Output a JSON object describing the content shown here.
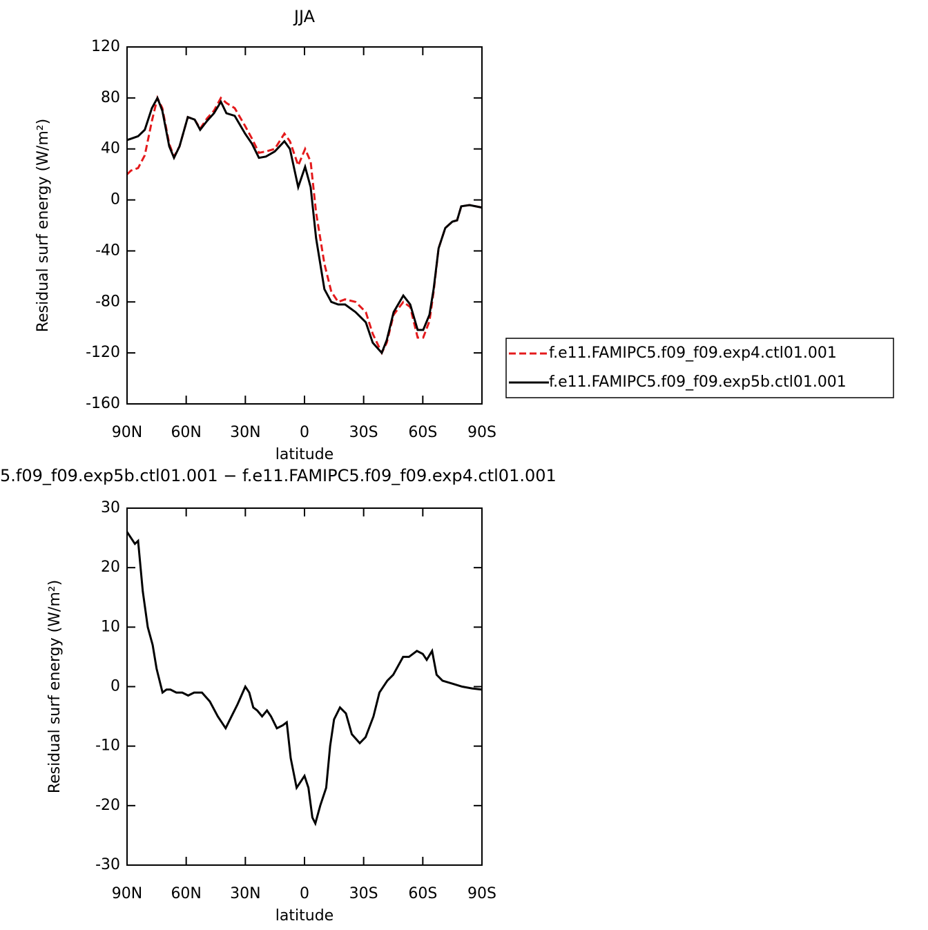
{
  "chart_data": [
    {
      "type": "line",
      "title": "JJA",
      "ylabel": "Residual surf energy (W/m²)",
      "xlabel": "latitude",
      "x": [
        90,
        88,
        84.4,
        81,
        77.4,
        74.6,
        72.1,
        68.6,
        66.2,
        63.4,
        59.2,
        55.7,
        52.9,
        49.4,
        45.9,
        42.4,
        39.6,
        35.4,
        30.1,
        26.6,
        23.1,
        19.6,
        15.1,
        10.2,
        7.4,
        3.2,
        -0.3,
        -3.1,
        -5.9,
        -10.1,
        -13.6,
        -17.1,
        -20.6,
        -25.9,
        -31.1,
        -34.6,
        -39.2,
        -41.7,
        -45.2,
        -50.1,
        -53.6,
        -57.4,
        -60.2,
        -63.4,
        -65.5,
        -68,
        -71.4,
        -75,
        -77.4,
        -79.5,
        -83.7,
        -90
      ],
      "xlim": [
        90,
        -90
      ],
      "xticks": [
        {
          "value": 90,
          "label": "90N"
        },
        {
          "value": 60,
          "label": "60N"
        },
        {
          "value": 30,
          "label": "30N"
        },
        0,
        {
          "value": -30,
          "label": "30S"
        },
        {
          "value": -60,
          "label": "60S"
        },
        {
          "value": -90,
          "label": "90S"
        }
      ],
      "ylim": [
        -160,
        120
      ],
      "yticks": [
        -160,
        -120,
        -80,
        -40,
        0,
        40,
        80,
        120
      ],
      "legend": "right",
      "series": [
        {
          "name": "f.e11.FAMIPC5.f09_f09.exp4.ctl01.001",
          "color": "#e41a1c",
          "dash": true,
          "values": [
            20,
            23,
            25,
            35,
            62,
            80,
            72,
            44,
            34,
            42,
            65,
            63,
            56,
            64,
            70,
            80,
            76,
            72,
            58,
            48,
            37,
            38,
            40,
            52,
            46,
            27,
            40,
            30,
            -10,
            -50,
            -72,
            -80,
            -78,
            -80,
            -88,
            -105,
            -120,
            -112,
            -90,
            -80,
            -84,
            -108,
            -108,
            -95,
            -72,
            -38,
            -22,
            -17,
            -16,
            -5,
            -4,
            -6
          ]
        },
        {
          "name": "f.e11.FAMIPC5.f09_f09.exp5b.ctl01.001",
          "color": "#000000",
          "dash": false,
          "values": [
            47,
            48,
            50,
            55,
            72,
            80,
            70,
            42,
            33,
            42,
            65,
            63,
            55,
            62,
            68,
            77,
            68,
            66,
            52,
            44,
            33,
            34,
            38,
            46,
            40,
            10,
            26,
            10,
            -30,
            -70,
            -80,
            -82,
            -82,
            -88,
            -96,
            -112,
            -120,
            -110,
            -88,
            -75,
            -82,
            -102,
            -102,
            -90,
            -70,
            -38,
            -22,
            -17,
            -16,
            -5,
            -4,
            -6
          ]
        }
      ]
    },
    {
      "type": "line",
      "title": "5.f09_f09.exp5b.ctl01.001  −  f.e11.FAMIPC5.f09_f09.exp4.ctl01.001",
      "ylabel": "Residual surf energy (W/m²)",
      "xlabel": "latitude",
      "x": [
        90,
        88,
        86,
        84.4,
        82,
        79.5,
        77,
        75,
        72,
        70,
        68,
        65,
        62,
        59,
        56,
        52,
        48,
        44,
        40,
        37,
        34,
        30,
        28,
        26,
        24,
        21.5,
        19,
        17,
        14,
        11,
        9,
        7,
        4,
        2,
        0,
        -2,
        -4,
        -5.5,
        -8,
        -11,
        -13,
        -15,
        -18,
        -21,
        -24,
        -28,
        -31,
        -35,
        -38,
        -42,
        -45,
        -50,
        -53,
        -57,
        -60,
        -62,
        -64.7,
        -67,
        -70,
        -75,
        -80,
        -85,
        -90
      ],
      "xlim": [
        90,
        -90
      ],
      "xticks": [
        {
          "value": 90,
          "label": "90N"
        },
        {
          "value": 60,
          "label": "60N"
        },
        {
          "value": 30,
          "label": "30N"
        },
        0,
        {
          "value": -30,
          "label": "30S"
        },
        {
          "value": -60,
          "label": "60S"
        },
        {
          "value": -90,
          "label": "90S"
        }
      ],
      "ylim": [
        -30,
        30
      ],
      "yticks": [
        -30,
        -20,
        -10,
        0,
        10,
        20,
        30
      ],
      "color": "#000000",
      "values": [
        26,
        25,
        24,
        24.5,
        16,
        10,
        7,
        3,
        -1,
        -0.5,
        -0.5,
        -1,
        -1,
        -1.5,
        -1,
        -1,
        -2.5,
        -5,
        -7,
        -5,
        -3,
        0,
        -1,
        -3.5,
        -4,
        -5,
        -4,
        -5,
        -7,
        -6.5,
        -6,
        -12,
        -17,
        -16,
        -15,
        -17,
        -22,
        -23,
        -20,
        -17,
        -10,
        -5.5,
        -3.5,
        -4.5,
        -8,
        -9.5,
        -8.5,
        -5,
        -1,
        1,
        2,
        5,
        5,
        6,
        5.5,
        4.5,
        6,
        2,
        1,
        0.5,
        0,
        -0.3,
        -0.5
      ]
    }
  ]
}
